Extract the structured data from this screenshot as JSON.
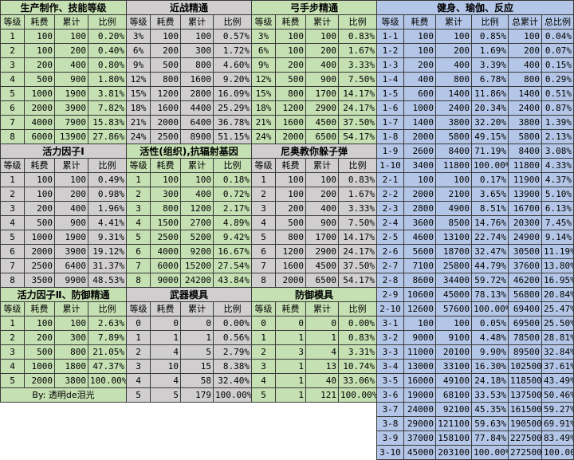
{
  "blocks": [
    {
      "id": "production",
      "title": "生产制作、技能等级",
      "headers": [
        "等级",
        "耗费",
        "累计",
        "比例"
      ],
      "rows": [
        [
          "1",
          "100",
          "100",
          "0.20%"
        ],
        [
          "2",
          "100",
          "200",
          "0.40%"
        ],
        [
          "3",
          "200",
          "400",
          "0.80%"
        ],
        [
          "4",
          "500",
          "900",
          "1.80%"
        ],
        [
          "5",
          "1000",
          "1900",
          "3.81%"
        ],
        [
          "6",
          "2000",
          "3900",
          "7.82%"
        ],
        [
          "7",
          "4000",
          "7900",
          "15.83%"
        ],
        [
          "8",
          "6000",
          "13900",
          "27.86%"
        ],
        [
          "9",
          "12000",
          "25900",
          "51.90%"
        ],
        [
          "10",
          "24000",
          "49900",
          "100.00%"
        ]
      ]
    },
    {
      "id": "melee",
      "title": "近战精通",
      "headers": [
        "等级",
        "耗费",
        "累计",
        "比例"
      ],
      "rows": [
        [
          "3%",
          "100",
          "100",
          "0.57%"
        ],
        [
          "6%",
          "200",
          "300",
          "1.72%"
        ],
        [
          "9%",
          "500",
          "800",
          "4.60%"
        ],
        [
          "12%",
          "800",
          "1600",
          "9.20%"
        ],
        [
          "15%",
          "1200",
          "2800",
          "16.09%"
        ],
        [
          "18%",
          "1600",
          "4400",
          "25.29%"
        ],
        [
          "21%",
          "2000",
          "6400",
          "36.78%"
        ],
        [
          "24%",
          "2500",
          "8900",
          "51.15%"
        ],
        [
          "27%",
          "3500",
          "12400",
          "71.26%"
        ],
        [
          "30%",
          "5000",
          "17400",
          "100.00%"
        ]
      ]
    },
    {
      "id": "bow",
      "title": "弓手步精通",
      "headers": [
        "等级",
        "耗费",
        "累计",
        "比例"
      ],
      "rows": [
        [
          "3%",
          "100",
          "100",
          "0.83%"
        ],
        [
          "6%",
          "100",
          "200",
          "1.67%"
        ],
        [
          "9%",
          "200",
          "400",
          "3.33%"
        ],
        [
          "12%",
          "500",
          "900",
          "7.50%"
        ],
        [
          "15%",
          "800",
          "1700",
          "14.17%"
        ],
        [
          "18%",
          "1200",
          "2900",
          "24.17%"
        ],
        [
          "21%",
          "1600",
          "4500",
          "37.50%"
        ],
        [
          "24%",
          "2000",
          "6500",
          "54.17%"
        ],
        [
          "27%",
          "2500",
          "9000",
          "75.00%"
        ],
        [
          "30%",
          "3000",
          "12000",
          "100.00%"
        ]
      ]
    },
    {
      "id": "vitality1",
      "title": "活力因子Ⅰ",
      "headers": [
        "等级",
        "耗费",
        "累计",
        "比例"
      ],
      "rows": [
        [
          "1",
          "100",
          "100",
          "0.49%"
        ],
        [
          "2",
          "100",
          "200",
          "0.98%"
        ],
        [
          "3",
          "200",
          "400",
          "1.96%"
        ],
        [
          "4",
          "500",
          "900",
          "4.41%"
        ],
        [
          "5",
          "1000",
          "1900",
          "9.31%"
        ],
        [
          "6",
          "2000",
          "3900",
          "19.12%"
        ],
        [
          "7",
          "2500",
          "6400",
          "31.37%"
        ],
        [
          "8",
          "3500",
          "9900",
          "48.53%"
        ],
        [
          "9",
          "4500",
          "14400",
          "70.59%"
        ],
        [
          "10",
          "6000",
          "20400",
          "100.00%"
        ]
      ]
    },
    {
      "id": "radiation",
      "title": "活性(组织),抗辐射基因",
      "headers": [
        "等级",
        "耗费",
        "累计",
        "比例"
      ],
      "rows": [
        [
          "1",
          "100",
          "100",
          "0.18%"
        ],
        [
          "2",
          "300",
          "400",
          "0.72%"
        ],
        [
          "3",
          "800",
          "1200",
          "2.17%"
        ],
        [
          "4",
          "1500",
          "2700",
          "4.89%"
        ],
        [
          "5",
          "2500",
          "5200",
          "9.42%"
        ],
        [
          "6",
          "4000",
          "9200",
          "16.67%"
        ],
        [
          "7",
          "6000",
          "15200",
          "27.54%"
        ],
        [
          "8",
          "9000",
          "24200",
          "43.84%"
        ],
        [
          "9",
          "13000",
          "37200",
          "67.39%"
        ],
        [
          "10",
          "18000",
          "55200",
          "100.00%"
        ]
      ]
    },
    {
      "id": "neo",
      "title": "尼奥教你躲子弹",
      "headers": [
        "等级",
        "耗费",
        "累计",
        "比例"
      ],
      "rows": [
        [
          "1",
          "100",
          "100",
          "0.83%"
        ],
        [
          "2",
          "100",
          "200",
          "1.67%"
        ],
        [
          "3",
          "200",
          "400",
          "3.33%"
        ],
        [
          "4",
          "500",
          "900",
          "7.50%"
        ],
        [
          "5",
          "800",
          "1700",
          "14.17%"
        ],
        [
          "6",
          "1200",
          "2900",
          "24.17%"
        ],
        [
          "7",
          "1600",
          "4500",
          "37.50%"
        ],
        [
          "8",
          "2000",
          "6500",
          "54.17%"
        ],
        [
          "9",
          "2500",
          "9000",
          "75.00%"
        ],
        [
          "10",
          "3000",
          "12000",
          "100.00%"
        ]
      ]
    },
    {
      "id": "vitality2",
      "title": "活力因子Ⅱ、防御精通",
      "headers": [
        "等级",
        "耗费",
        "累计",
        "比例"
      ],
      "rows": [
        [
          "1",
          "100",
          "100",
          "2.63%"
        ],
        [
          "2",
          "200",
          "300",
          "7.89%"
        ],
        [
          "3",
          "500",
          "800",
          "21.05%"
        ],
        [
          "4",
          "1000",
          "1800",
          "47.37%"
        ],
        [
          "5",
          "2000",
          "3800",
          "100.00%"
        ]
      ],
      "credit": "By: 透明de泪光"
    },
    {
      "id": "weapon",
      "title": "武器模具",
      "headers": [
        "等级",
        "耗费",
        "累计",
        "比例"
      ],
      "rows": [
        [
          "0",
          "0",
          "0",
          "0.00%"
        ],
        [
          "1",
          "1",
          "1",
          "0.56%"
        ],
        [
          "2",
          "4",
          "5",
          "2.79%"
        ],
        [
          "3",
          "10",
          "15",
          "8.38%"
        ],
        [
          "4",
          "4",
          "58",
          "32.40%"
        ],
        [
          "5",
          "5",
          "179",
          "100.00%"
        ]
      ]
    },
    {
      "id": "defense",
      "title": "防御模具",
      "headers": [
        "等级",
        "耗费",
        "累计",
        "比例"
      ],
      "rows": [
        [
          "0",
          "0",
          "0",
          "0.00%"
        ],
        [
          "1",
          "1",
          "1",
          "0.83%"
        ],
        [
          "2",
          "3",
          "4",
          "3.31%"
        ],
        [
          "3",
          "1",
          "13",
          "10.74%"
        ],
        [
          "4",
          "1",
          "40",
          "33.06%"
        ],
        [
          "5",
          "1",
          "121",
          "100.00%"
        ]
      ]
    },
    {
      "id": "fitness",
      "title": "健身、瑜伽、反应",
      "headers": [
        "等级",
        "耗费",
        "累计",
        "比例",
        "总累计",
        "总比例"
      ],
      "rows": [
        [
          "1-1",
          "100",
          "100",
          "0.85%",
          "100",
          "0.04%"
        ],
        [
          "1-2",
          "100",
          "200",
          "1.69%",
          "200",
          "0.07%"
        ],
        [
          "1-3",
          "200",
          "400",
          "3.39%",
          "400",
          "0.15%"
        ],
        [
          "1-4",
          "400",
          "800",
          "6.78%",
          "800",
          "0.29%"
        ],
        [
          "1-5",
          "600",
          "1400",
          "11.86%",
          "1400",
          "0.51%"
        ],
        [
          "1-6",
          "1000",
          "2400",
          "20.34%",
          "2400",
          "0.87%"
        ],
        [
          "1-7",
          "1400",
          "3800",
          "32.20%",
          "3800",
          "1.39%"
        ],
        [
          "1-8",
          "2000",
          "5800",
          "49.15%",
          "5800",
          "2.13%"
        ],
        [
          "1-9",
          "2600",
          "8400",
          "71.19%",
          "8400",
          "3.08%"
        ],
        [
          "1-10",
          "3400",
          "11800",
          "100.00%",
          "11800",
          "4.33%"
        ],
        [
          "2-1",
          "100",
          "100",
          "0.17%",
          "11900",
          "4.37%"
        ],
        [
          "2-2",
          "2000",
          "2100",
          "3.65%",
          "13900",
          "5.10%"
        ],
        [
          "2-3",
          "2800",
          "4900",
          "8.51%",
          "16700",
          "6.13%"
        ],
        [
          "2-4",
          "3600",
          "8500",
          "14.76%",
          "20300",
          "7.45%"
        ],
        [
          "2-5",
          "4600",
          "13100",
          "22.74%",
          "24900",
          "9.14%"
        ],
        [
          "2-6",
          "5600",
          "18700",
          "32.47%",
          "30500",
          "11.19%"
        ],
        [
          "2-7",
          "7100",
          "25800",
          "44.79%",
          "37600",
          "13.80%"
        ],
        [
          "2-8",
          "8600",
          "34400",
          "59.72%",
          "46200",
          "16.95%"
        ],
        [
          "2-9",
          "10600",
          "45000",
          "78.13%",
          "56800",
          "20.84%"
        ],
        [
          "2-10",
          "12600",
          "57600",
          "100.00%",
          "69400",
          "25.47%"
        ],
        [
          "3-1",
          "100",
          "100",
          "0.05%",
          "69500",
          "25.50%"
        ],
        [
          "3-2",
          "9000",
          "9100",
          "4.48%",
          "78500",
          "28.81%"
        ],
        [
          "3-3",
          "11000",
          "20100",
          "9.90%",
          "89500",
          "32.84%"
        ],
        [
          "3-4",
          "13000",
          "33100",
          "16.30%",
          "102500",
          "37.61%"
        ],
        [
          "3-5",
          "16000",
          "49100",
          "24.18%",
          "118500",
          "43.49%"
        ],
        [
          "3-6",
          "19000",
          "68100",
          "33.53%",
          "137500",
          "50.46%"
        ],
        [
          "3-7",
          "24000",
          "92100",
          "45.35%",
          "161500",
          "59.27%"
        ],
        [
          "3-8",
          "29000",
          "121100",
          "59.63%",
          "190500",
          "69.91%"
        ],
        [
          "3-9",
          "37000",
          "158100",
          "77.84%",
          "227500",
          "83.49%"
        ],
        [
          "3-10",
          "45000",
          "203100",
          "100.00%",
          "272500",
          "100.00%"
        ]
      ]
    }
  ],
  "colors": {
    "green": "#c5e0b3",
    "gray": "#d0cece",
    "blue": "#b4c6e7",
    "border": "#3a3a3a"
  }
}
